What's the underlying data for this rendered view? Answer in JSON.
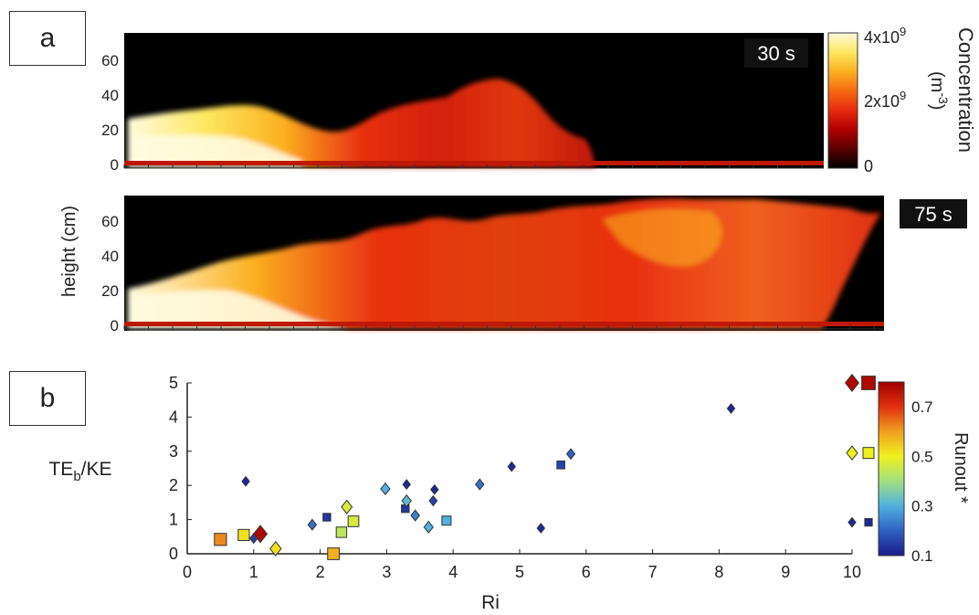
{
  "panel_labels": {
    "a": "a",
    "b": "b"
  },
  "panel_a": {
    "ylabel": "height (cm)",
    "y_ticks": [
      "0",
      "20",
      "40",
      "60"
    ],
    "frames": [
      {
        "time_label": "30 s"
      },
      {
        "time_label": "75 s"
      }
    ],
    "colorbar": {
      "title": "Concentration",
      "unit": "(m",
      "unit_sup": "-3",
      "unit_close": ")",
      "ticks": [
        {
          "mant": "4x10",
          "exp": "9",
          "value": 4
        },
        {
          "mant": "2x10",
          "exp": "9",
          "value": 2
        },
        {
          "mant": "0",
          "exp": "",
          "value": 0
        }
      ],
      "colors": [
        "#000000",
        "#5a0000",
        "#b00000",
        "#e82a10",
        "#f56a10",
        "#fbb020",
        "#fde860",
        "#fffbe0"
      ]
    }
  },
  "chart_data": {
    "type": "scatter",
    "xlabel": "Ri",
    "ylabel_main": "TE",
    "ylabel_sub": "b",
    "ylabel_rest": "/KE",
    "xlim": [
      0,
      10
    ],
    "ylim": [
      0,
      5
    ],
    "x_ticks": [
      0,
      1,
      2,
      3,
      4,
      5,
      6,
      7,
      8,
      9,
      10
    ],
    "y_ticks": [
      0,
      1,
      2,
      3,
      4,
      5
    ],
    "colorbar": {
      "label": "Runout *",
      "ticks": [
        0.1,
        0.3,
        0.5,
        0.7
      ],
      "range": [
        0.1,
        0.8
      ],
      "colors": [
        "#1a1a8c",
        "#3060c0",
        "#50b0e0",
        "#a0e080",
        "#f0f020",
        "#f0a020",
        "#e03010",
        "#a00000"
      ]
    },
    "points": [
      {
        "x": 0.5,
        "y": 0.42,
        "marker": "square",
        "runout": 0.62
      },
      {
        "x": 0.85,
        "y": 0.55,
        "marker": "square",
        "runout": 0.52
      },
      {
        "x": 0.88,
        "y": 2.12,
        "marker": "diamond",
        "runout": 0.12
      },
      {
        "x": 1.0,
        "y": 0.45,
        "marker": "diamond",
        "runout": 0.15
      },
      {
        "x": 1.1,
        "y": 0.58,
        "marker": "diamond",
        "runout": 0.78
      },
      {
        "x": 1.33,
        "y": 0.15,
        "marker": "diamond",
        "runout": 0.52
      },
      {
        "x": 1.88,
        "y": 0.85,
        "marker": "diamond",
        "runout": 0.22
      },
      {
        "x": 2.1,
        "y": 1.07,
        "marker": "square",
        "runout": 0.14
      },
      {
        "x": 2.2,
        "y": 0.0,
        "marker": "square",
        "runout": 0.58
      },
      {
        "x": 2.32,
        "y": 0.63,
        "marker": "square",
        "runout": 0.44
      },
      {
        "x": 2.4,
        "y": 1.37,
        "marker": "diamond",
        "runout": 0.47
      },
      {
        "x": 2.5,
        "y": 0.95,
        "marker": "square",
        "runout": 0.47
      },
      {
        "x": 2.98,
        "y": 1.9,
        "marker": "diamond",
        "runout": 0.3
      },
      {
        "x": 3.28,
        "y": 1.32,
        "marker": "square",
        "runout": 0.14
      },
      {
        "x": 3.3,
        "y": 1.55,
        "marker": "diamond",
        "runout": 0.32
      },
      {
        "x": 3.3,
        "y": 2.03,
        "marker": "diamond",
        "runout": 0.12
      },
      {
        "x": 3.43,
        "y": 1.12,
        "marker": "diamond",
        "runout": 0.24
      },
      {
        "x": 3.63,
        "y": 0.78,
        "marker": "diamond",
        "runout": 0.3
      },
      {
        "x": 3.7,
        "y": 1.55,
        "marker": "diamond",
        "runout": 0.16
      },
      {
        "x": 3.72,
        "y": 1.88,
        "marker": "diamond",
        "runout": 0.12
      },
      {
        "x": 3.9,
        "y": 0.97,
        "marker": "square",
        "runout": 0.3
      },
      {
        "x": 4.4,
        "y": 2.03,
        "marker": "diamond",
        "runout": 0.22
      },
      {
        "x": 4.88,
        "y": 2.55,
        "marker": "diamond",
        "runout": 0.12
      },
      {
        "x": 5.32,
        "y": 0.75,
        "marker": "diamond",
        "runout": 0.12
      },
      {
        "x": 5.62,
        "y": 2.6,
        "marker": "square",
        "runout": 0.16
      },
      {
        "x": 5.77,
        "y": 2.92,
        "marker": "diamond",
        "runout": 0.2
      },
      {
        "x": 8.18,
        "y": 4.25,
        "marker": "diamond",
        "runout": 0.12
      }
    ],
    "legend_markers": [
      {
        "y": 5.0,
        "runout": 0.78
      },
      {
        "y": 2.95,
        "runout": 0.5
      },
      {
        "y": 0.92,
        "runout": 0.12
      }
    ]
  }
}
